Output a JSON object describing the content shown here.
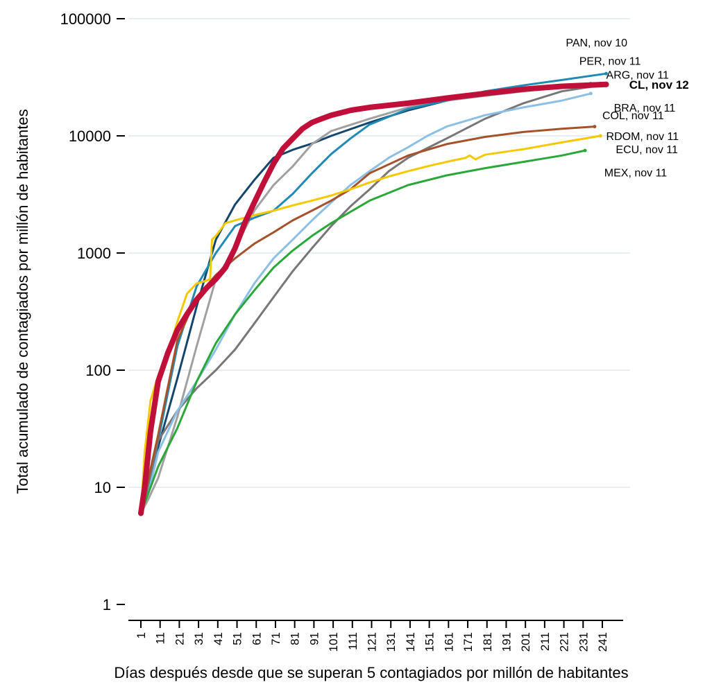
{
  "chart_data": {
    "type": "line",
    "xlabel": "Días después desde que se superan 5 contagiados por millón de habitantes",
    "ylabel": "Total acumulado de contagiados por millón de habitantes",
    "yscale": "log",
    "ylim": [
      1,
      100000
    ],
    "yticks": [
      {
        "value": 1,
        "label": "1"
      },
      {
        "value": 10,
        "label": "10"
      },
      {
        "value": 100,
        "label": "100"
      },
      {
        "value": 1000,
        "label": "1000"
      },
      {
        "value": 10000,
        "label": "10000"
      },
      {
        "value": 100000,
        "label": "100000"
      }
    ],
    "xlim": [
      1,
      245
    ],
    "xticks": [
      "1",
      "11",
      "21",
      "31",
      "41",
      "51",
      "61",
      "71",
      "81",
      "91",
      "101",
      "111",
      "121",
      "131",
      "141",
      "151",
      "161",
      "171",
      "181",
      "191",
      "201",
      "211",
      "221",
      "231",
      "241"
    ],
    "grid": "horizontal",
    "legend": "end-of-line labels",
    "series": [
      {
        "name": "PAN,  nov 10",
        "color": "#12466e",
        "width": 3,
        "bold": false,
        "x": [
          1,
          5,
          10,
          20,
          30,
          40,
          50,
          60,
          70,
          80,
          90,
          100,
          120,
          140,
          160,
          180,
          200,
          220,
          240
        ],
        "y": [
          6,
          11,
          22,
          85,
          350,
          1300,
          2600,
          4200,
          6500,
          7600,
          8600,
          10000,
          13000,
          16500,
          20000,
          23000,
          25500,
          27000,
          28000
        ]
      },
      {
        "name": "PER,  nov 11",
        "color": "#a0a0a0",
        "width": 3,
        "bold": false,
        "x": [
          1,
          5,
          10,
          20,
          30,
          40,
          50,
          60,
          70,
          80,
          90,
          100,
          120,
          140,
          160,
          180,
          200,
          220,
          235
        ],
        "y": [
          6,
          8,
          12,
          40,
          160,
          600,
          1100,
          2300,
          3800,
          5500,
          8500,
          11000,
          14000,
          17500,
          20000,
          22000,
          24000,
          26000,
          28000
        ]
      },
      {
        "name": "ARG,  nov 11",
        "color": "#1f8bb5",
        "width": 3,
        "bold": false,
        "x": [
          1,
          5,
          10,
          20,
          30,
          40,
          50,
          60,
          70,
          80,
          90,
          100,
          110,
          120,
          140,
          160,
          180,
          200,
          220,
          243
        ],
        "y": [
          6,
          10,
          25,
          160,
          520,
          1000,
          1700,
          2000,
          2300,
          3200,
          4800,
          7000,
          9500,
          12500,
          17000,
          20000,
          24000,
          27000,
          30000,
          34000
        ]
      },
      {
        "name": "CL, nov 12",
        "color": "#c0103a",
        "width": 8,
        "bold": true,
        "x": [
          1,
          3,
          6,
          10,
          15,
          20,
          25,
          30,
          35,
          40,
          45,
          50,
          55,
          60,
          65,
          70,
          75,
          80,
          85,
          90,
          95,
          100,
          110,
          120,
          140,
          160,
          180,
          200,
          220,
          243
        ],
        "y": [
          6,
          10,
          30,
          80,
          140,
          220,
          300,
          400,
          500,
          600,
          750,
          1100,
          1800,
          2700,
          4000,
          5800,
          7800,
          9500,
          11500,
          13000,
          14000,
          15000,
          16500,
          17500,
          19000,
          21000,
          23000,
          25000,
          26500,
          27500
        ]
      },
      {
        "name": "BRA,  nov 11",
        "color": "#777777",
        "width": 3,
        "bold": false,
        "x": [
          1,
          5,
          10,
          20,
          30,
          40,
          50,
          60,
          70,
          80,
          90,
          100,
          110,
          120,
          130,
          140,
          160,
          180,
          200,
          220,
          240
        ],
        "y": [
          6,
          11,
          25,
          45,
          70,
          100,
          150,
          250,
          420,
          700,
          1100,
          1700,
          2500,
          3500,
          5000,
          6500,
          9500,
          14000,
          19000,
          24000,
          27000
        ]
      },
      {
        "name": "COL,  nov 11",
        "color": "#8bbfe5",
        "width": 3,
        "bold": false,
        "x": [
          1,
          5,
          10,
          20,
          30,
          40,
          50,
          60,
          70,
          80,
          90,
          100,
          110,
          120,
          130,
          140,
          150,
          160,
          180,
          200,
          220,
          235
        ],
        "y": [
          6,
          9,
          20,
          45,
          80,
          150,
          300,
          550,
          900,
          1300,
          1900,
          2700,
          3800,
          5000,
          6500,
          8000,
          10000,
          12000,
          15000,
          17500,
          20000,
          23000
        ]
      },
      {
        "name": "RDOM,  nov 11",
        "color": "#a5522a",
        "width": 3,
        "bold": false,
        "x": [
          1,
          5,
          10,
          20,
          30,
          40,
          50,
          60,
          70,
          80,
          90,
          100,
          110,
          120,
          140,
          160,
          180,
          200,
          220,
          237
        ],
        "y": [
          6,
          12,
          28,
          180,
          420,
          650,
          900,
          1200,
          1500,
          1900,
          2300,
          2800,
          3500,
          4800,
          6800,
          8500,
          9800,
          10800,
          11500,
          12000
        ]
      },
      {
        "name": "ECU,  nov 11",
        "color": "#f5c800",
        "width": 3,
        "bold": false,
        "x": [
          1,
          3,
          6,
          10,
          15,
          20,
          25,
          30,
          35,
          37,
          38,
          40,
          45,
          50,
          55,
          60,
          70,
          80,
          90,
          100,
          110,
          120,
          130,
          140,
          150,
          160,
          170,
          172,
          175,
          180,
          200,
          220,
          240
        ],
        "y": [
          6,
          20,
          55,
          90,
          140,
          260,
          450,
          550,
          580,
          600,
          1300,
          1400,
          1800,
          1900,
          2000,
          2100,
          2300,
          2550,
          2800,
          3100,
          3500,
          4000,
          4500,
          5000,
          5500,
          6000,
          6500,
          6800,
          6300,
          6900,
          7700,
          8800,
          10000
        ]
      },
      {
        "name": "MEX,  nov 11",
        "color": "#2aa837",
        "width": 3,
        "bold": false,
        "x": [
          1,
          5,
          10,
          20,
          30,
          40,
          50,
          60,
          70,
          80,
          90,
          100,
          120,
          140,
          160,
          180,
          200,
          220,
          232
        ],
        "y": [
          6,
          9,
          15,
          32,
          80,
          170,
          300,
          480,
          750,
          1050,
          1400,
          1800,
          2800,
          3800,
          4600,
          5300,
          6000,
          6800,
          7500
        ]
      }
    ],
    "labels": [
      {
        "series": 0,
        "x": 222,
        "y": 63000
      },
      {
        "series": 1,
        "x": 229,
        "y": 44000
      },
      {
        "series": 2,
        "x": 243,
        "y": 33500
      },
      {
        "series": 3,
        "x": 255,
        "y": 27500
      },
      {
        "series": 4,
        "x": 247,
        "y": 17500
      },
      {
        "series": 5,
        "x": 241,
        "y": 15000
      },
      {
        "series": 6,
        "x": 243,
        "y": 10000
      },
      {
        "series": 7,
        "x": 248,
        "y": 7700
      },
      {
        "series": 8,
        "x": 242,
        "y": 4900
      }
    ]
  }
}
